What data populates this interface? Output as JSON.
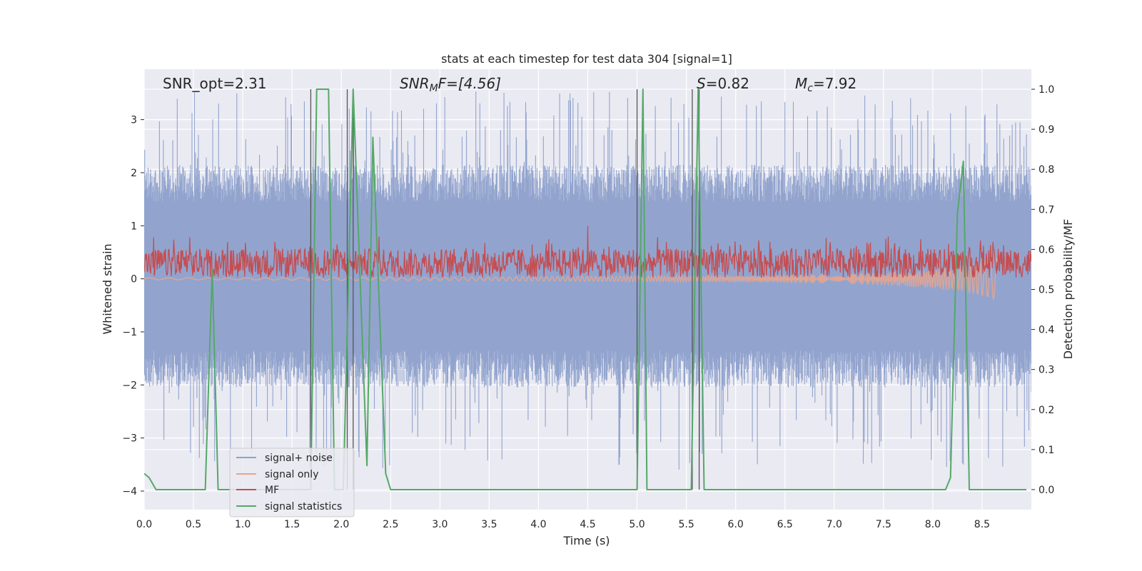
{
  "chart_data": {
    "type": "line",
    "title": "stats at each timestep for test data 304 [signal=1]",
    "xlabel": "Time (s)",
    "ylabel": "Whitened strain",
    "y2label": "Detection probability/MF",
    "xlim": [
      0.0,
      9.0
    ],
    "ylim": [
      -4.35,
      3.95
    ],
    "y2lim": [
      -0.05,
      1.05
    ],
    "grid": true,
    "legend_position": "lower-left",
    "x_ticks": [
      "0.0",
      "0.5",
      "1.0",
      "1.5",
      "2.0",
      "2.5",
      "3.0",
      "3.5",
      "4.0",
      "4.5",
      "5.0",
      "5.5",
      "6.0",
      "6.5",
      "7.0",
      "7.5",
      "8.0",
      "8.5"
    ],
    "y_ticks": [
      "3",
      "2",
      "1",
      "0",
      "−1",
      "−2",
      "−3",
      "−4"
    ],
    "y2_ticks": [
      "1.0",
      "0.9",
      "0.8",
      "0.7",
      "0.6",
      "0.5",
      "0.4",
      "0.3",
      "0.2",
      "0.1",
      "0.0"
    ],
    "annotations": {
      "snr_opt": "SNR_opt=2.31",
      "snr_mf_sym": "SNR",
      "snr_mf_sub": "M",
      "snr_mf_rest": "F=[4.56]",
      "s_sym": "S",
      "s_rest": "=0.82",
      "mc_sym": "M",
      "mc_sub": "c",
      "mc_rest": "=7.92"
    },
    "series": [
      {
        "name": "signal+ noise",
        "color": "#8da0cb",
        "style": "noise band",
        "y_range": [
          -3.6,
          3.55
        ],
        "typical_range": [
          -1.7,
          1.8
        ]
      },
      {
        "name": "signal only",
        "color": "#e8a58e",
        "style": "chirp",
        "x": [
          0.0,
          1.0,
          2.0,
          3.0,
          4.0,
          5.0,
          6.0,
          7.0,
          7.5,
          8.0,
          8.3,
          8.5,
          8.66
        ],
        "envelope": [
          0.02,
          0.02,
          0.03,
          0.03,
          0.04,
          0.05,
          0.06,
          0.09,
          0.12,
          0.18,
          0.25,
          0.33,
          0.42
        ]
      },
      {
        "name": "MF",
        "color": "#c44e52",
        "style": "noisy band",
        "y_range": [
          0.0,
          0.55
        ],
        "peak": {
          "x": 4.5,
          "y": 1.0
        }
      },
      {
        "name": "signal statistics",
        "color": "#55a868",
        "axis": "right",
        "x": [
          0.0,
          0.05,
          0.12,
          0.62,
          0.69,
          0.75,
          1.69,
          1.75,
          1.87,
          1.93,
          2.02,
          2.12,
          2.26,
          2.32,
          2.45,
          2.5,
          5.0,
          5.06,
          5.1,
          5.55,
          5.62,
          5.68,
          8.13,
          8.18,
          8.25,
          8.31,
          8.37,
          8.95
        ],
        "y": [
          0.04,
          0.03,
          0.0,
          0.0,
          0.55,
          0.0,
          0.0,
          1.0,
          1.0,
          0.0,
          0.0,
          1.0,
          0.06,
          0.88,
          0.04,
          0.0,
          0.0,
          1.0,
          0.0,
          0.0,
          1.0,
          0.0,
          0.0,
          0.03,
          0.69,
          0.82,
          0.0,
          0.0
        ]
      }
    ],
    "vertical_lines": [
      1.69,
      2.06,
      2.12,
      5.0,
      5.56,
      5.63
    ],
    "legend": [
      "signal+ noise",
      "signal only",
      "MF",
      "signal statistics"
    ],
    "colors": {
      "background": "#eaeaf2",
      "grid": "#ffffff",
      "vline": "#555555"
    }
  }
}
